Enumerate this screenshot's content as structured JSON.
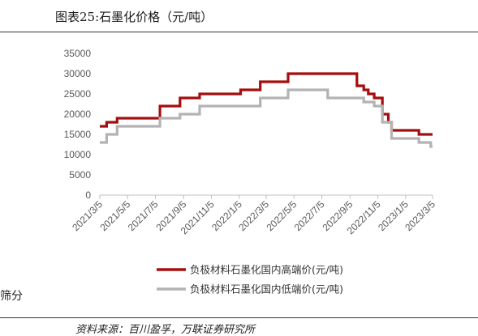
{
  "figure": {
    "title": "图表25:石墨化价格（元/吨）",
    "source": "资料来源：百川盈孚，万联证券研究所",
    "side_text": "筛分"
  },
  "chart_data": {
    "type": "line",
    "title": "",
    "xlabel": "",
    "ylabel": "",
    "ylim": [
      0,
      35000
    ],
    "yticks": [
      0,
      5000,
      10000,
      15000,
      20000,
      25000,
      30000,
      35000
    ],
    "xlim": [
      "2021/3/5",
      "2023/3/5"
    ],
    "xticks": [
      "2021/3/5",
      "2021/5/5",
      "2021/7/5",
      "2021/9/5",
      "2021/11/5",
      "2022/1/5",
      "2022/3/5",
      "2022/5/5",
      "2022/7/5",
      "2022/9/5",
      "2022/11/5",
      "2023/1/5",
      "2023/3/5"
    ],
    "grid": false,
    "legend_position": "bottom",
    "series": [
      {
        "name": "负极材料石墨化国内高端价(元/吨)",
        "color": "#a50e0e",
        "step": true,
        "points": [
          [
            "2021/3/5",
            17000
          ],
          [
            "2021/3/20",
            18000
          ],
          [
            "2021/4/12",
            19000
          ],
          [
            "2021/7/15",
            22000
          ],
          [
            "2021/8/28",
            24000
          ],
          [
            "2021/10/10",
            25000
          ],
          [
            "2022/1/8",
            26000
          ],
          [
            "2022/2/20",
            28000
          ],
          [
            "2022/4/22",
            30000
          ],
          [
            "2022/9/20",
            27000
          ],
          [
            "2022/10/5",
            26000
          ],
          [
            "2022/10/15",
            25000
          ],
          [
            "2022/10/28",
            24000
          ],
          [
            "2022/11/15",
            20000
          ],
          [
            "2022/11/28",
            18000
          ],
          [
            "2022/12/5",
            16000
          ],
          [
            "2023/2/3",
            15000
          ],
          [
            "2023/3/5",
            15000
          ]
        ]
      },
      {
        "name": "负极材料石墨化国内低端价(元/吨)",
        "color": "#b3b3b3",
        "step": true,
        "points": [
          [
            "2021/3/5",
            13000
          ],
          [
            "2021/3/20",
            15000
          ],
          [
            "2021/4/12",
            17000
          ],
          [
            "2021/7/15",
            19000
          ],
          [
            "2021/8/28",
            20000
          ],
          [
            "2021/10/10",
            22000
          ],
          [
            "2022/2/20",
            24000
          ],
          [
            "2022/4/22",
            26000
          ],
          [
            "2022/7/18",
            24000
          ],
          [
            "2022/10/5",
            23000
          ],
          [
            "2022/10/28",
            22000
          ],
          [
            "2022/11/15",
            18000
          ],
          [
            "2022/12/5",
            14000
          ],
          [
            "2023/2/3",
            13000
          ],
          [
            "2023/3/1",
            12000
          ],
          [
            "2023/3/5",
            12000
          ]
        ]
      }
    ]
  }
}
